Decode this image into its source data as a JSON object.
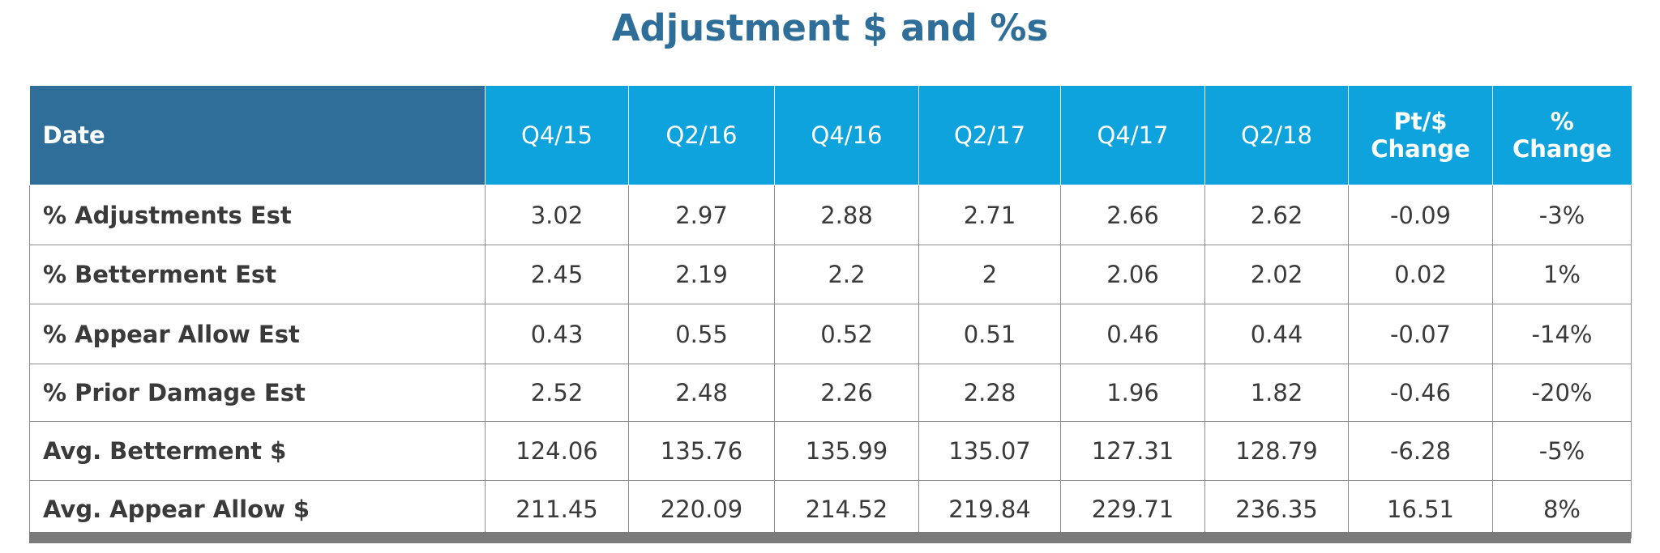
{
  "chart_data": {
    "type": "table",
    "title": "Adjustment $ and %s",
    "columns": [
      "Date",
      "Q4/15",
      "Q2/16",
      "Q4/16",
      "Q2/17",
      "Q4/17",
      "Q2/18",
      "Pt/$\nChange",
      "%\nChange"
    ],
    "rows": [
      {
        "label": "% Adjustments Est",
        "cells": [
          "3.02",
          "2.97",
          "2.88",
          "2.71",
          "2.66",
          "2.62",
          "-0.09",
          "-3%"
        ]
      },
      {
        "label": "% Betterment Est",
        "cells": [
          "2.45",
          "2.19",
          "2.2",
          "2",
          "2.06",
          "2.02",
          "0.02",
          "1%"
        ]
      },
      {
        "label": "% Appear Allow Est",
        "cells": [
          "0.43",
          "0.55",
          "0.52",
          "0.51",
          "0.46",
          "0.44",
          "-0.07",
          "-14%"
        ]
      },
      {
        "label": "% Prior Damage Est",
        "cells": [
          "2.52",
          "2.48",
          "2.26",
          "2.28",
          "1.96",
          "1.82",
          "-0.46",
          "-20%"
        ]
      },
      {
        "label": "Avg. Betterment $",
        "cells": [
          "124.06",
          "135.76",
          "135.99",
          "135.07",
          "127.31",
          "128.79",
          "-6.28",
          "-5%"
        ]
      },
      {
        "label": "Avg. Appear Allow $",
        "cells": [
          "211.45",
          "220.09",
          "214.52",
          "219.84",
          "229.71",
          "236.35",
          "16.51",
          "8%"
        ]
      }
    ]
  },
  "colors": {
    "title": "#2e6e99",
    "header_dark": "#2e6e99",
    "header_light": "#0fa3dd",
    "grid": "#8c8c8c",
    "footer_bar": "#7a7a7a"
  }
}
